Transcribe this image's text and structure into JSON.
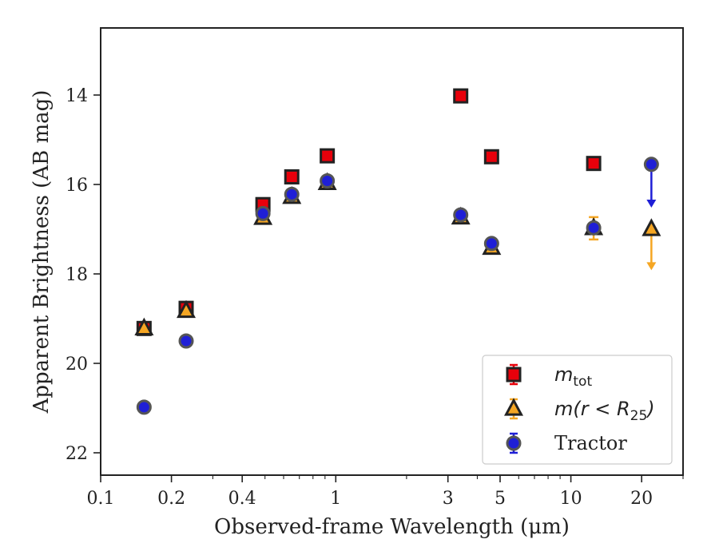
{
  "chart_data": {
    "type": "scatter",
    "xlabel": "Observed-frame Wavelength (μm)",
    "ylabel": "Apparent Brightness (AB mag)",
    "x_scale": "log",
    "xlim": [
      0.1,
      30
    ],
    "ylim": [
      22.5,
      12.5
    ],
    "y_inverted": true,
    "x_ticks": [
      0.1,
      0.2,
      0.4,
      1,
      3,
      5,
      10,
      20
    ],
    "x_tick_labels": [
      "0.1",
      "0.2",
      "0.4",
      "1",
      "3",
      "5",
      "10",
      "20"
    ],
    "y_ticks": [
      14,
      16,
      18,
      20,
      22
    ],
    "y_tick_labels": [
      "14",
      "16",
      "18",
      "20",
      "22"
    ],
    "grid": false,
    "legend_position": "lower-right",
    "series": [
      {
        "name": "m_tot",
        "legend_label_main": "m",
        "legend_label_sub": "tot",
        "marker": "square",
        "color": "#e8000b",
        "edge_color": "#222222",
        "points": [
          {
            "x": 0.153,
            "y": 19.22
          },
          {
            "x": 0.231,
            "y": 18.77
          },
          {
            "x": 0.49,
            "y": 16.45
          },
          {
            "x": 0.65,
            "y": 15.83
          },
          {
            "x": 0.92,
            "y": 15.36
          },
          {
            "x": 3.4,
            "y": 14.02
          },
          {
            "x": 4.6,
            "y": 15.38
          },
          {
            "x": 12.5,
            "y": 15.53
          }
        ]
      },
      {
        "name": "m(r < R25)",
        "legend_label_main": "m(r < R",
        "legend_label_sub": "25",
        "legend_label_tail": ")",
        "marker": "triangle",
        "color": "#f5a623",
        "edge_color": "#222222",
        "points": [
          {
            "x": 0.153,
            "y": 19.22
          },
          {
            "x": 0.231,
            "y": 18.83
          },
          {
            "x": 0.49,
            "y": 16.75
          },
          {
            "x": 0.65,
            "y": 16.28
          },
          {
            "x": 0.92,
            "y": 15.97
          },
          {
            "x": 3.4,
            "y": 16.74
          },
          {
            "x": 4.6,
            "y": 17.42
          },
          {
            "x": 12.5,
            "y": 16.98,
            "yerr": 0.25
          }
        ],
        "upper_limits": [
          {
            "x": 22,
            "y": 17.0,
            "arrow_to": 17.9
          }
        ]
      },
      {
        "name": "Tractor",
        "legend_label_main": "Tractor",
        "marker": "circle",
        "color": "#1f1fd6",
        "edge_color": "#555555",
        "points": [
          {
            "x": 0.153,
            "y": 20.98
          },
          {
            "x": 0.231,
            "y": 19.5
          },
          {
            "x": 0.49,
            "y": 16.65
          },
          {
            "x": 0.65,
            "y": 16.22
          },
          {
            "x": 0.92,
            "y": 15.92
          },
          {
            "x": 3.4,
            "y": 16.68
          },
          {
            "x": 4.6,
            "y": 17.32
          },
          {
            "x": 12.5,
            "y": 16.97
          }
        ],
        "upper_limits": [
          {
            "x": 22,
            "y": 15.55,
            "arrow_to": 16.5
          }
        ]
      }
    ]
  }
}
